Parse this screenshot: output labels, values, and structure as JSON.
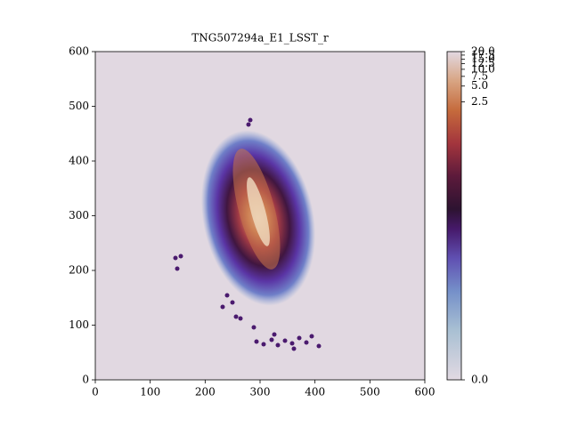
{
  "chart_data": {
    "type": "image",
    "title": "TNG507294a_E1_LSST_r",
    "xlim": [
      0,
      600
    ],
    "ylim": [
      0,
      600
    ],
    "xticks": [
      0,
      100,
      200,
      300,
      400,
      500,
      600
    ],
    "yticks": [
      0,
      100,
      200,
      300,
      400,
      500,
      600
    ],
    "colorbar_lim": [
      0,
      20
    ],
    "colorbar_scale": "power",
    "colorbar_ticks": [
      {
        "value": 0,
        "label": "0.0"
      },
      {
        "value": 2.5,
        "label": "2.5"
      },
      {
        "value": 5,
        "label": "5.0"
      },
      {
        "value": 7.5,
        "label": "7.5"
      },
      {
        "value": 10,
        "label": "10.0"
      },
      {
        "value": 12.5,
        "label": "12.5"
      },
      {
        "value": 15,
        "label": "15.0"
      },
      {
        "value": 17.5,
        "label": "17.5"
      },
      {
        "value": 20,
        "label": "20.0"
      }
    ]
  }
}
